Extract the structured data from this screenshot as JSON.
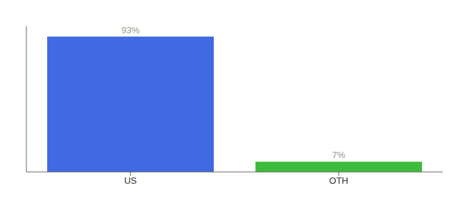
{
  "chart_data": {
    "type": "bar",
    "categories": [
      "US",
      "OTH"
    ],
    "values": [
      93,
      7
    ],
    "value_labels": [
      "93%",
      "7%"
    ],
    "data_labels": true,
    "colors": [
      "#4169e1",
      "#3dbb3d"
    ],
    "ylim": [
      0,
      100
    ],
    "tick_labels": "x",
    "grid": false
  }
}
